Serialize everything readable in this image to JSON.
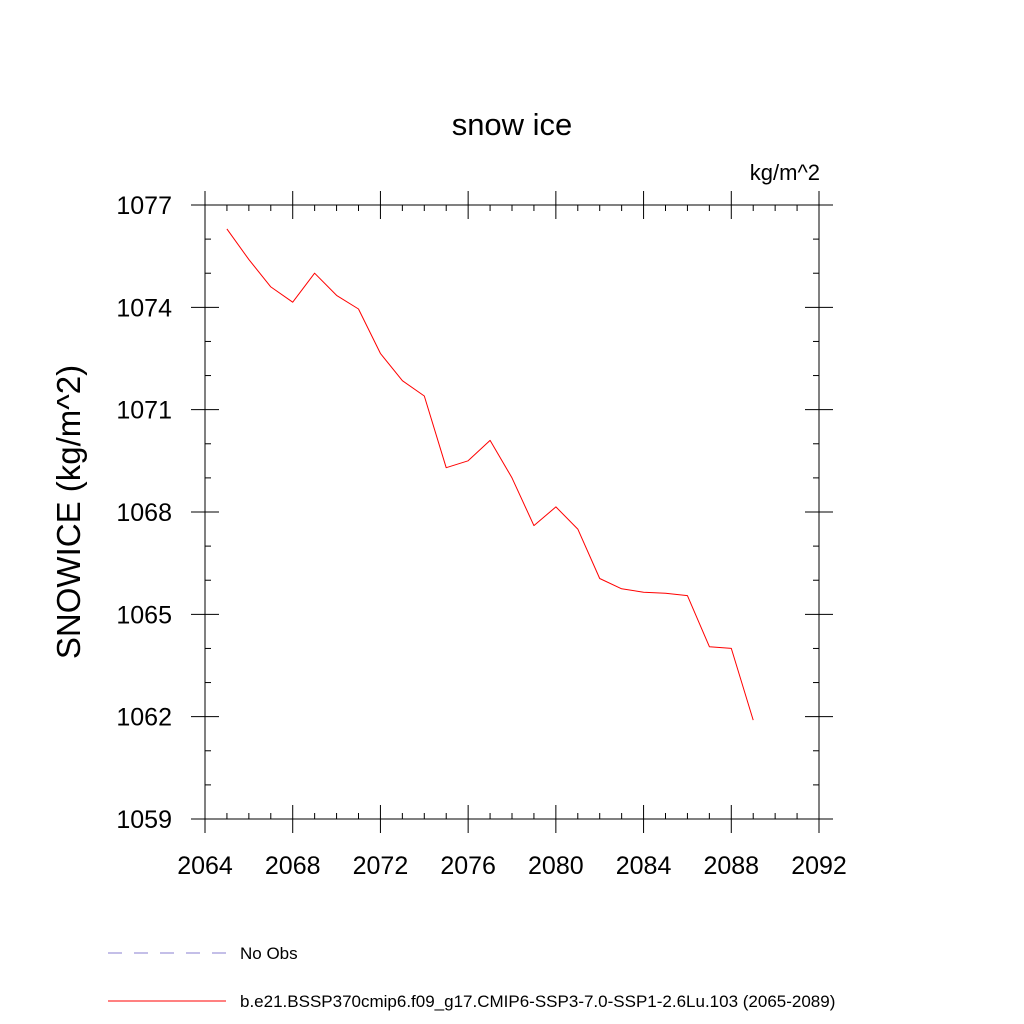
{
  "chart_data": {
    "type": "line",
    "title": "snow ice",
    "units_label": "kg/m^2",
    "ylabel": "SNOWICE  (kg/m^2)",
    "xlabel": "",
    "xlim": [
      2064,
      2092
    ],
    "ylim": [
      1059,
      1077
    ],
    "x_ticks": [
      2064,
      2068,
      2072,
      2076,
      2080,
      2084,
      2088,
      2092
    ],
    "x_tick_labels": [
      "2064",
      "2068",
      "2072",
      "2076",
      "2080",
      "2084",
      "2088",
      "2092"
    ],
    "x_minor_step": 1,
    "y_ticks": [
      1059,
      1062,
      1065,
      1068,
      1071,
      1074,
      1077
    ],
    "y_tick_labels": [
      "1059",
      "1062",
      "1065",
      "1068",
      "1071",
      "1074",
      "1077"
    ],
    "y_minor_step": 1,
    "grid": false,
    "legend_position": "bottom",
    "series": [
      {
        "name": "b.e21.BSSP370cmip6.f09_g17.CMIP6-SSP3-7.0-SSP1-2.6Lu.103 (2065-2089)",
        "color": "#ff0000",
        "style": "solid",
        "x": [
          2065,
          2066,
          2067,
          2068,
          2069,
          2070,
          2071,
          2072,
          2073,
          2074,
          2075,
          2076,
          2077,
          2078,
          2079,
          2080,
          2081,
          2082,
          2083,
          2084,
          2085,
          2086,
          2087,
          2088,
          2089
        ],
        "values": [
          1076.3,
          1075.4,
          1074.6,
          1074.15,
          1075.0,
          1074.35,
          1073.95,
          1072.65,
          1071.85,
          1071.4,
          1069.3,
          1069.5,
          1070.1,
          1069.0,
          1067.6,
          1068.15,
          1067.5,
          1066.05,
          1065.75,
          1065.65,
          1065.62,
          1065.55,
          1064.05,
          1064.0,
          1061.9
        ]
      }
    ],
    "legend": [
      {
        "label": "No Obs",
        "color": "#8a7fd0",
        "style": "dashed"
      },
      {
        "label": "b.e21.BSSP370cmip6.f09_g17.CMIP6-SSP3-7.0-SSP1-2.6Lu.103 (2065-2089)",
        "color": "#ff0000",
        "style": "solid"
      }
    ]
  }
}
